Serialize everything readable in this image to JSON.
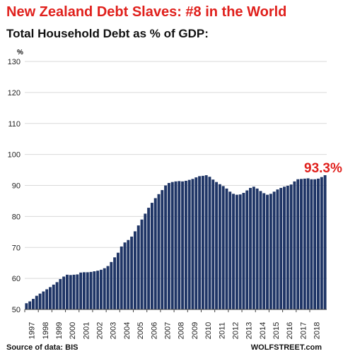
{
  "header": {
    "title": "New Zealand  Debt Slaves: #8 in the World",
    "subtitle": "Total Household Debt as % of GDP:"
  },
  "footer": {
    "source": "Source of data: BIS",
    "site": "WOLFSTREET.com"
  },
  "colors": {
    "bar": "#1f3566",
    "title": "#e0201c",
    "annotation": "#e0201c",
    "grid": "#d9d9d9"
  },
  "chart_data": {
    "type": "bar",
    "title": "Total Household Debt as % of GDP:",
    "ylabel": "%",
    "ylim": [
      50,
      130
    ],
    "yticks": [
      50,
      60,
      70,
      80,
      90,
      100,
      110,
      120,
      130
    ],
    "grid": true,
    "x_tick_labels": [
      "1997",
      "1998",
      "1999",
      "2000",
      "2001",
      "2002",
      "2003",
      "2004",
      "2005",
      "2006",
      "2007",
      "2008",
      "2009",
      "2010",
      "2011",
      "2012",
      "2013",
      "2014",
      "2015",
      "2016",
      "2017",
      "2018"
    ],
    "quarters_per_year": 4,
    "annotation": "93.3%",
    "values": [
      52.0,
      52.6,
      53.4,
      54.4,
      55.1,
      55.8,
      56.5,
      57.2,
      58.0,
      58.8,
      59.8,
      60.6,
      61.2,
      61.1,
      61.2,
      61.3,
      61.9,
      62.0,
      62.0,
      62.1,
      62.3,
      62.5,
      62.8,
      63.3,
      64.0,
      65.3,
      66.8,
      68.3,
      70.3,
      71.6,
      72.4,
      73.5,
      75.2,
      77.1,
      79.0,
      80.9,
      82.8,
      84.4,
      85.9,
      87.2,
      88.5,
      90.0,
      90.8,
      91.1,
      91.3,
      91.4,
      91.3,
      91.5,
      91.8,
      92.1,
      92.6,
      93.0,
      93.1,
      93.3,
      92.8,
      91.9,
      91.1,
      90.4,
      89.8,
      89.0,
      88.0,
      87.3,
      87.0,
      87.1,
      87.6,
      88.4,
      89.2,
      89.6,
      89.0,
      88.2,
      87.5,
      87.0,
      87.3,
      88.0,
      88.7,
      89.2,
      89.6,
      89.9,
      90.3,
      91.3,
      92.0,
      92.1,
      92.2,
      92.3,
      92.0,
      92.0,
      92.2,
      92.7,
      93.3
    ]
  }
}
